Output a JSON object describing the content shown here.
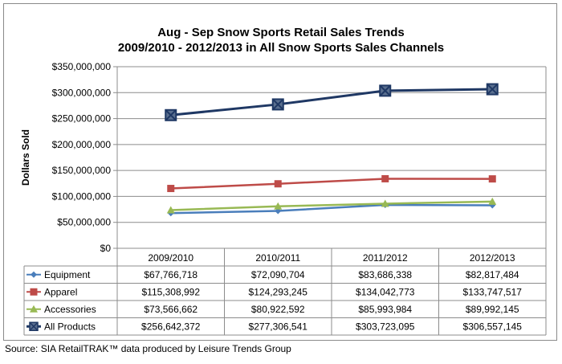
{
  "chart_data": {
    "type": "line",
    "title": "Aug - Sep Snow Sports Retail Sales Trends",
    "subtitle": "2009/2010 - 2012/2013 in All Snow Sports Sales Channels",
    "ylabel": "Dollars Sold",
    "xlabel": "",
    "ylim": [
      0,
      350000000
    ],
    "y_ticks": [
      "$0",
      "$50,000,000",
      "$100,000,000",
      "$150,000,000",
      "$200,000,000",
      "$250,000,000",
      "$300,000,000",
      "$350,000,000"
    ],
    "grid": true,
    "legend": "data-table",
    "categories": [
      "2009/2010",
      "2010/2011",
      "2011/2012",
      "2012/2013"
    ],
    "series": [
      {
        "name": "Equipment",
        "color": "#4A7EBB",
        "marker": "diamond",
        "values": [
          67766718,
          72090704,
          83686338,
          82817484
        ],
        "labels": [
          "$67,766,718",
          "$72,090,704",
          "$83,686,338",
          "$82,817,484"
        ]
      },
      {
        "name": "Apparel",
        "color": "#BE4B48",
        "marker": "square",
        "values": [
          115308992,
          124293245,
          134042773,
          133747517
        ],
        "labels": [
          "$115,308,992",
          "$124,293,245",
          "$134,042,773",
          "$133,747,517"
        ]
      },
      {
        "name": "Accessories",
        "color": "#98B954",
        "marker": "triangle",
        "values": [
          73566662,
          80922592,
          85993984,
          89992145
        ],
        "labels": [
          "$73,566,662",
          "$80,922,592",
          "$85,993,984",
          "$89,992,145"
        ]
      },
      {
        "name": "All Products",
        "color": "#1F3864",
        "marker": "x-square",
        "values": [
          256642372,
          277306541,
          303723095,
          306557145
        ],
        "labels": [
          "$256,642,372",
          "$277,306,541",
          "$303,723,095",
          "$306,557,145"
        ]
      }
    ]
  },
  "source": "Source: SIA RetailTRAK™  data produced by Leisure Trends Group"
}
